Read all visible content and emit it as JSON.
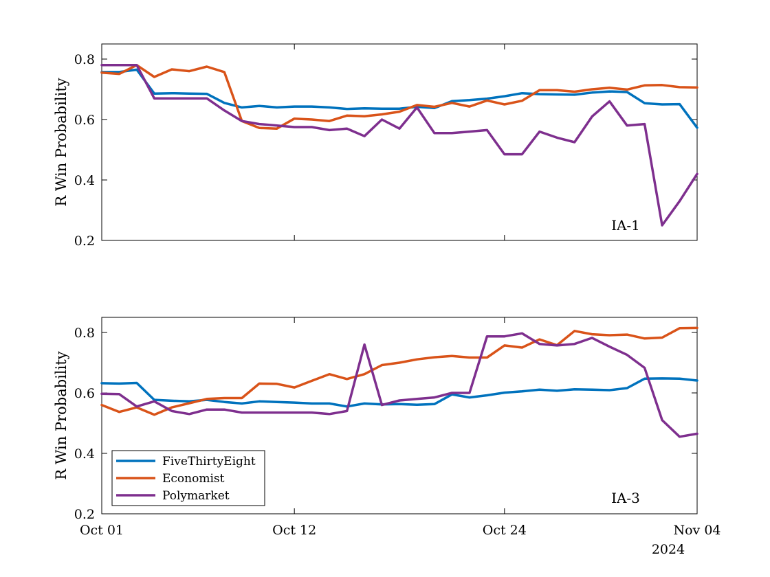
{
  "chart_data": [
    {
      "type": "line",
      "panel_label": "IA-1",
      "ylabel": "R Win Probability",
      "ylim": [
        0.2,
        0.85
      ],
      "yticks": [
        0.2,
        0.4,
        0.6,
        0.8
      ],
      "ytick_labels": [
        "0.2",
        "0.4",
        "0.6",
        "0.8"
      ],
      "x": [
        0,
        1,
        2,
        3,
        4,
        5,
        6,
        7,
        8,
        9,
        10,
        11,
        12,
        13,
        14,
        15,
        16,
        17,
        18,
        19,
        20,
        21,
        22,
        23,
        24,
        25,
        26,
        27,
        28,
        29,
        30,
        31,
        32,
        33,
        34
      ],
      "series": [
        {
          "name": "FiveThirtyEight",
          "color": "#0072BD",
          "values": [
            0.757,
            0.757,
            0.765,
            0.686,
            0.687,
            0.686,
            0.685,
            0.655,
            0.64,
            0.645,
            0.64,
            0.643,
            0.643,
            0.64,
            0.635,
            0.637,
            0.636,
            0.636,
            0.642,
            0.638,
            0.661,
            0.664,
            0.669,
            0.677,
            0.687,
            0.684,
            0.683,
            0.682,
            0.689,
            0.693,
            0.691,
            0.654,
            0.65,
            0.651,
            0.573
          ]
        },
        {
          "name": "Economist",
          "color": "#D95319",
          "values": [
            0.755,
            0.751,
            0.78,
            0.741,
            0.766,
            0.76,
            0.775,
            0.757,
            0.595,
            0.572,
            0.57,
            0.603,
            0.6,
            0.595,
            0.613,
            0.611,
            0.617,
            0.626,
            0.648,
            0.642,
            0.655,
            0.643,
            0.663,
            0.65,
            0.662,
            0.697,
            0.697,
            0.692,
            0.7,
            0.705,
            0.699,
            0.713,
            0.714,
            0.707,
            0.706
          ]
        },
        {
          "name": "Polymarket",
          "color": "#7E2F8E",
          "values": [
            0.78,
            0.78,
            0.78,
            0.67,
            0.67,
            0.67,
            0.67,
            0.63,
            0.595,
            0.585,
            0.58,
            0.575,
            0.575,
            0.565,
            0.57,
            0.545,
            0.6,
            0.57,
            0.64,
            0.555,
            0.555,
            0.56,
            0.565,
            0.485,
            0.485,
            0.56,
            0.54,
            0.525,
            0.61,
            0.66,
            0.58,
            0.585,
            0.25,
            0.33,
            0.42
          ]
        }
      ]
    },
    {
      "type": "line",
      "panel_label": "IA-3",
      "ylabel": "R Win Probability",
      "ylim": [
        0.2,
        0.85
      ],
      "yticks": [
        0.2,
        0.4,
        0.6,
        0.8
      ],
      "ytick_labels": [
        "0.2",
        "0.4",
        "0.6",
        "0.8"
      ],
      "x": [
        0,
        1,
        2,
        3,
        4,
        5,
        6,
        7,
        8,
        9,
        10,
        11,
        12,
        13,
        14,
        15,
        16,
        17,
        18,
        19,
        20,
        21,
        22,
        23,
        24,
        25,
        26,
        27,
        28,
        29,
        30,
        31,
        32,
        33,
        34
      ],
      "xticks": [
        0,
        11,
        23,
        34
      ],
      "xtick_labels": [
        "Oct 01",
        "Oct 12",
        "Oct 24",
        "Nov 04"
      ],
      "xaxis_year_label": "2024",
      "legend": {
        "entries": [
          "FiveThirtyEight",
          "Economist",
          "Polymarket"
        ],
        "location": "bottom-left"
      },
      "series": [
        {
          "name": "FiveThirtyEight",
          "color": "#0072BD",
          "values": [
            0.632,
            0.631,
            0.633,
            0.577,
            0.574,
            0.572,
            0.577,
            0.57,
            0.565,
            0.572,
            0.57,
            0.568,
            0.565,
            0.565,
            0.555,
            0.565,
            0.562,
            0.563,
            0.561,
            0.563,
            0.595,
            0.585,
            0.592,
            0.601,
            0.605,
            0.611,
            0.607,
            0.612,
            0.611,
            0.609,
            0.616,
            0.647,
            0.648,
            0.647,
            0.641
          ]
        },
        {
          "name": "Economist",
          "color": "#D95319",
          "values": [
            0.56,
            0.537,
            0.552,
            0.528,
            0.552,
            0.566,
            0.58,
            0.583,
            0.583,
            0.631,
            0.63,
            0.618,
            0.64,
            0.662,
            0.646,
            0.662,
            0.692,
            0.7,
            0.711,
            0.718,
            0.722,
            0.717,
            0.717,
            0.757,
            0.75,
            0.777,
            0.758,
            0.805,
            0.794,
            0.791,
            0.793,
            0.78,
            0.783,
            0.814,
            0.815
          ]
        },
        {
          "name": "Polymarket",
          "color": "#7E2F8E",
          "values": [
            0.597,
            0.596,
            0.555,
            0.572,
            0.54,
            0.53,
            0.545,
            0.545,
            0.535,
            0.535,
            0.535,
            0.535,
            0.535,
            0.53,
            0.54,
            0.76,
            0.56,
            0.575,
            0.58,
            0.585,
            0.6,
            0.6,
            0.787,
            0.787,
            0.797,
            0.762,
            0.757,
            0.762,
            0.782,
            0.753,
            0.726,
            0.683,
            0.51,
            0.455,
            0.465
          ]
        }
      ]
    }
  ]
}
